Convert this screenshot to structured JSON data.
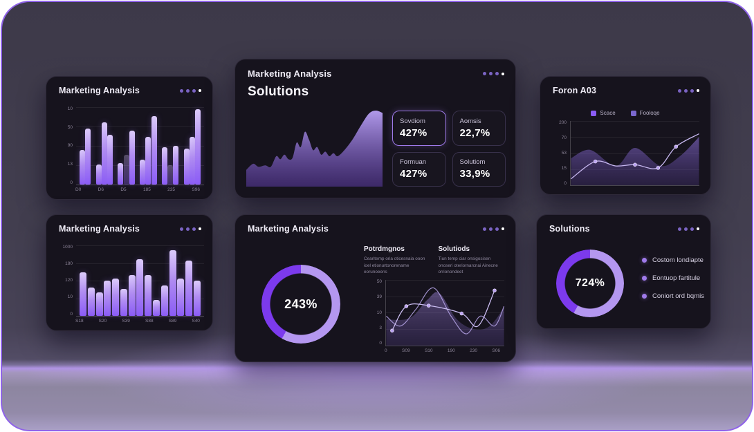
{
  "colors": {
    "accent": "#8b5cf6",
    "accent_light": "#b497f0",
    "donut_dark": "#7c3aed",
    "card_bg": "#16131d",
    "frame_border": "#8f63e8"
  },
  "cards": {
    "top_left": {
      "title": "Marketing Analysis"
    },
    "top_center": {
      "title": "Marketing Analysis",
      "subtitle": "Solutions",
      "stats": [
        {
          "label": "Sovdiom",
          "value": "427%",
          "highlight": true
        },
        {
          "label": "Aomsis",
          "value": "22,7%",
          "highlight": false
        },
        {
          "label": "Formuan",
          "value": "427%",
          "highlight": false
        },
        {
          "label": "Solutiom",
          "value": "33,9%",
          "highlight": false
        }
      ]
    },
    "top_right": {
      "title": "Foron A03",
      "legend": [
        {
          "label": "Scace"
        },
        {
          "label": "Fooloqe"
        }
      ]
    },
    "bottom_left": {
      "title": "Marketing Analysis"
    },
    "bottom_center": {
      "title": "Marketing Analysis",
      "columns": [
        {
          "heading": "Potrdmgnos",
          "body": "Cearitemp oria oticesnaia ooon ioel etionurtonorename eorunoeens"
        },
        {
          "heading": "Solutiods",
          "body": "Tiun temp ciar onsigosisen onoseri oteriornarcnai Ainecne orrionondeet"
        }
      ]
    },
    "bottom_right": {
      "title": "Solutions",
      "legend": [
        {
          "label": "Costom londiapte"
        },
        {
          "label": "Eontuop fartitule"
        },
        {
          "label": "Coniort ord bqmis"
        }
      ]
    }
  },
  "chart_data": [
    {
      "type": "bar",
      "title": "Marketing Analysis (top-left)",
      "ylim": [
        0,
        100
      ],
      "y_ticks": [
        "10",
        "50",
        "90",
        "13",
        "0"
      ],
      "x_ticks": [
        "D0",
        "D6",
        "D5",
        "185",
        "235",
        "S96"
      ],
      "bars": [
        {
          "v": 45
        },
        {
          "v": 72
        },
        {
          "v": 26,
          "g": 1
        },
        {
          "v": 80
        },
        {
          "v": 64
        },
        {
          "v": 28,
          "g": 1
        },
        {
          "v": 38,
          "dim": 1
        },
        {
          "v": 70
        },
        {
          "v": 32,
          "g": 1
        },
        {
          "v": 62
        },
        {
          "v": 88
        },
        {
          "v": 48,
          "g": 1
        },
        {
          "v": 25,
          "dim": 1
        },
        {
          "v": 50
        },
        {
          "v": 46,
          "g": 1
        },
        {
          "v": 62
        },
        {
          "v": 97
        }
      ]
    },
    {
      "type": "area",
      "title": "Solutions trend (top-center)",
      "frameless": true,
      "series": [
        {
          "kind": "area",
          "opacity": 0.95,
          "fill": [
            "#b9a1f5",
            "#5f3daa"
          ],
          "points": [
            [
              0,
              22
            ],
            [
              5,
              30
            ],
            [
              9,
              26
            ],
            [
              14,
              28
            ],
            [
              18,
              26
            ],
            [
              22,
              40
            ],
            [
              25,
              36
            ],
            [
              28,
              42
            ],
            [
              31,
              36
            ],
            [
              34,
              38
            ],
            [
              37,
              58
            ],
            [
              40,
              52
            ],
            [
              43,
              72
            ],
            [
              46,
              62
            ],
            [
              49,
              48
            ],
            [
              52,
              52
            ],
            [
              55,
              42
            ],
            [
              58,
              46
            ],
            [
              61,
              40
            ],
            [
              64,
              44
            ],
            [
              67,
              40
            ],
            [
              72,
              48
            ],
            [
              78,
              62
            ],
            [
              84,
              80
            ],
            [
              90,
              96
            ],
            [
              95,
              100
            ],
            [
              100,
              97
            ]
          ]
        }
      ]
    },
    {
      "type": "line",
      "title": "Foron A03 (top-right)",
      "spine_left": true,
      "y_ticks": [
        "200",
        "70",
        "53",
        "15",
        "0"
      ],
      "legend": [
        "Scace",
        "Fooloqe"
      ],
      "series": [
        {
          "kind": "area",
          "opacity": 0.6,
          "fill": [
            "#8b6fd6",
            "#4d3885"
          ],
          "points": [
            [
              0,
              42
            ],
            [
              15,
              55
            ],
            [
              35,
              30
            ],
            [
              50,
              58
            ],
            [
              70,
              30
            ],
            [
              85,
              45
            ],
            [
              100,
              75
            ]
          ]
        },
        {
          "kind": "line",
          "stroke": "#c7b8f0",
          "width": 1.3,
          "markers": [
            1,
            3,
            4,
            5
          ],
          "points": [
            [
              0,
              10
            ],
            [
              19,
              37
            ],
            [
              35,
              30
            ],
            [
              50,
              32
            ],
            [
              68,
              27
            ],
            [
              82,
              60
            ],
            [
              100,
              80
            ]
          ]
        }
      ]
    },
    {
      "type": "bar",
      "title": "Marketing Analysis (bottom-left)",
      "ylim": [
        0,
        100
      ],
      "y_ticks": [
        "1000",
        "180",
        "120",
        "10",
        "0"
      ],
      "x_ticks": [
        "S18",
        "S20",
        "S39",
        "S88",
        "S89",
        "S40"
      ],
      "bars": [
        {
          "v": 62
        },
        {
          "v": 40
        },
        {
          "v": 33
        },
        {
          "v": 50
        },
        {
          "v": 53
        },
        {
          "v": 38
        },
        {
          "v": 58
        },
        {
          "v": 80
        },
        {
          "v": 58
        },
        {
          "v": 23
        },
        {
          "v": 43
        },
        {
          "v": 93
        },
        {
          "v": 53
        },
        {
          "v": 78
        },
        {
          "v": 50
        }
      ]
    },
    {
      "type": "line",
      "title": "Marketing Analysis detail (bottom-center)",
      "spine_left": true,
      "y_ticks": [
        "50",
        "39",
        "10",
        "3",
        "0"
      ],
      "x_ticks": [
        "0",
        "S09",
        "S10",
        "190",
        "230",
        "S06"
      ],
      "series": [
        {
          "kind": "area",
          "opacity": 0.45,
          "fill": [
            "#a58ae2",
            "#5c4699"
          ],
          "points": [
            [
              0,
              40
            ],
            [
              20,
              42
            ],
            [
              35,
              70
            ],
            [
              45,
              80
            ],
            [
              60,
              40
            ],
            [
              75,
              25
            ],
            [
              88,
              30
            ],
            [
              100,
              58
            ]
          ]
        },
        {
          "kind": "line",
          "stroke": "#b7a6ea",
          "width": 1.2,
          "opacity": 0.85,
          "points": [
            [
              0,
              45
            ],
            [
              12,
              30
            ],
            [
              25,
              55
            ],
            [
              40,
              88
            ],
            [
              55,
              45
            ],
            [
              68,
              18
            ],
            [
              80,
              45
            ],
            [
              92,
              30
            ],
            [
              100,
              60
            ]
          ]
        },
        {
          "kind": "line",
          "stroke": "#cbbdf2",
          "width": 1.3,
          "markers": [
            0,
            1,
            2,
            3,
            5
          ],
          "points": [
            [
              5,
              23
            ],
            [
              17,
              60
            ],
            [
              36,
              61
            ],
            [
              64,
              49
            ],
            [
              78,
              30
            ],
            [
              92,
              84
            ]
          ]
        }
      ]
    },
    {
      "type": "donut",
      "value": "243%",
      "percent": 58,
      "colors": [
        "#b497f0",
        "#7c3aed"
      ]
    },
    {
      "type": "donut",
      "value": "724%",
      "percent": 58,
      "colors": [
        "#b497f0",
        "#7c3aed"
      ]
    }
  ]
}
